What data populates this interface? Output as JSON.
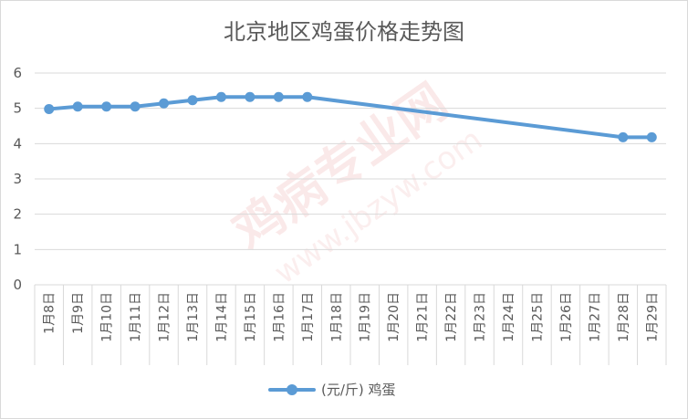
{
  "chart_data": {
    "type": "line",
    "title": "北京地区鸡蛋价格走势图",
    "categories": [
      "1月8日",
      "1月9日",
      "1月10日",
      "1月11日",
      "1月12日",
      "1月13日",
      "1月14日",
      "1月15日",
      "1月16日",
      "1月17日",
      "1月18日",
      "1月19日",
      "1月20日",
      "1月21日",
      "1月22日",
      "1月23日",
      "1月24日",
      "1月25日",
      "1月26日",
      "1月27日",
      "1月28日",
      "1月29日"
    ],
    "series": [
      {
        "name": "(元/斤) 鸡蛋",
        "color": "#5b9bd5",
        "values": [
          4.98,
          5.05,
          5.05,
          5.05,
          5.14,
          5.23,
          5.32,
          5.32,
          5.32,
          5.32,
          null,
          null,
          null,
          null,
          null,
          null,
          null,
          null,
          null,
          null,
          4.18,
          4.18
        ]
      }
    ],
    "ylim": [
      0,
      6
    ],
    "yticks": [
      "0",
      "1",
      "2",
      "3",
      "4",
      "5",
      "6"
    ],
    "grid": true,
    "legend": "bottom",
    "watermark": [
      "鸡病专业网",
      "www.jbzyw.com"
    ]
  }
}
